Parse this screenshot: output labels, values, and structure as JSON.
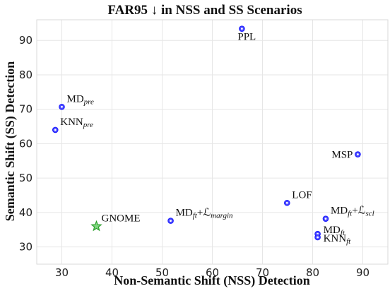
{
  "chart_data": {
    "type": "scatter",
    "title": "FAR95 ↓  in NSS and SS Scenarios",
    "xlabel": "Non-Semantic Shift (NSS) Detection",
    "ylabel": "Semantic Shift (SS) Detection",
    "xlim": [
      25,
      95
    ],
    "ylim": [
      25,
      96
    ],
    "xticks": [
      30,
      40,
      50,
      60,
      70,
      80,
      90
    ],
    "yticks": [
      30,
      40,
      50,
      60,
      70,
      80,
      90
    ],
    "grid": true,
    "colors": {
      "baseline": "#1a1aff",
      "highlight": "#2ca02c"
    },
    "points": [
      {
        "label": "MD",
        "sub": "pre",
        "suffix": "",
        "x": 30.0,
        "y": 70.7,
        "marker": "circle",
        "pos": "upper-right"
      },
      {
        "label": "KNN",
        "sub": "pre",
        "suffix": "",
        "x": 28.7,
        "y": 64.0,
        "marker": "circle",
        "pos": "upper-right"
      },
      {
        "label": "PPL",
        "sub": "",
        "suffix": "",
        "x": 65.9,
        "y": 93.4,
        "marker": "circle",
        "pos": "below"
      },
      {
        "label": "MSP",
        "sub": "",
        "suffix": "",
        "x": 89.0,
        "y": 56.9,
        "marker": "circle",
        "pos": "left"
      },
      {
        "label": "LOF",
        "sub": "",
        "suffix": "",
        "x": 74.9,
        "y": 42.8,
        "marker": "circle",
        "pos": "upper-right"
      },
      {
        "label": "MD",
        "sub": "ft",
        "suffix": "+ℒ",
        "suffix_sub": "margin",
        "x": 51.7,
        "y": 37.6,
        "marker": "circle",
        "pos": "upper-right"
      },
      {
        "label": "MD",
        "sub": "ft",
        "suffix": "+ℒ",
        "suffix_sub": "scl",
        "x": 82.6,
        "y": 38.2,
        "marker": "circle",
        "pos": "upper-right"
      },
      {
        "label": "MD",
        "sub": "ft",
        "suffix": "",
        "x": 81.0,
        "y": 33.8,
        "marker": "circle",
        "pos": "right"
      },
      {
        "label": "KNN",
        "sub": "ft",
        "suffix": "",
        "x": 81.0,
        "y": 32.8,
        "marker": "circle",
        "pos": "lower-right"
      },
      {
        "label": "GNOME",
        "sub": "",
        "suffix": "",
        "x": 36.9,
        "y": 36.0,
        "marker": "star",
        "pos": "upper-right"
      }
    ]
  }
}
